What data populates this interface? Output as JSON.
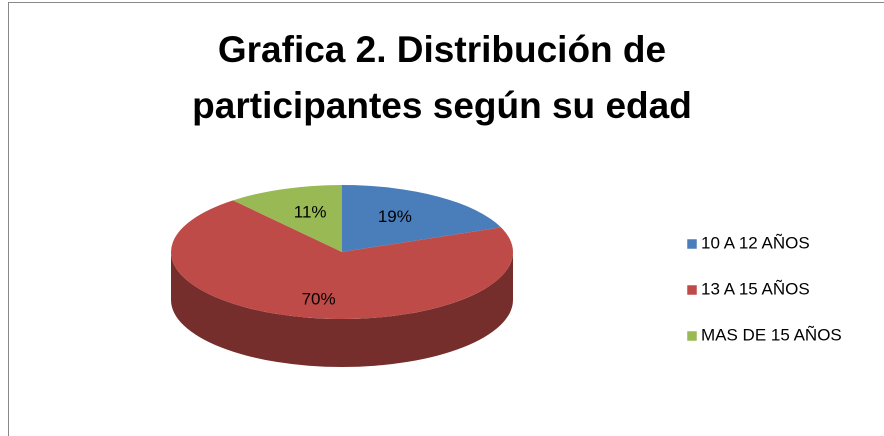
{
  "chart_data": {
    "type": "pie",
    "title": "Grafica 2. Distribución de participantes según su edad",
    "categories": [
      "10 A 12 AÑOS",
      "13 A 15 AÑOS",
      "MAS DE 15 AÑOS"
    ],
    "values": [
      19,
      70,
      11
    ],
    "value_labels": [
      "19%",
      "70%",
      "11%"
    ],
    "colors": [
      "#4a7ebb",
      "#be4b48",
      "#98b954"
    ],
    "legend": "right"
  }
}
